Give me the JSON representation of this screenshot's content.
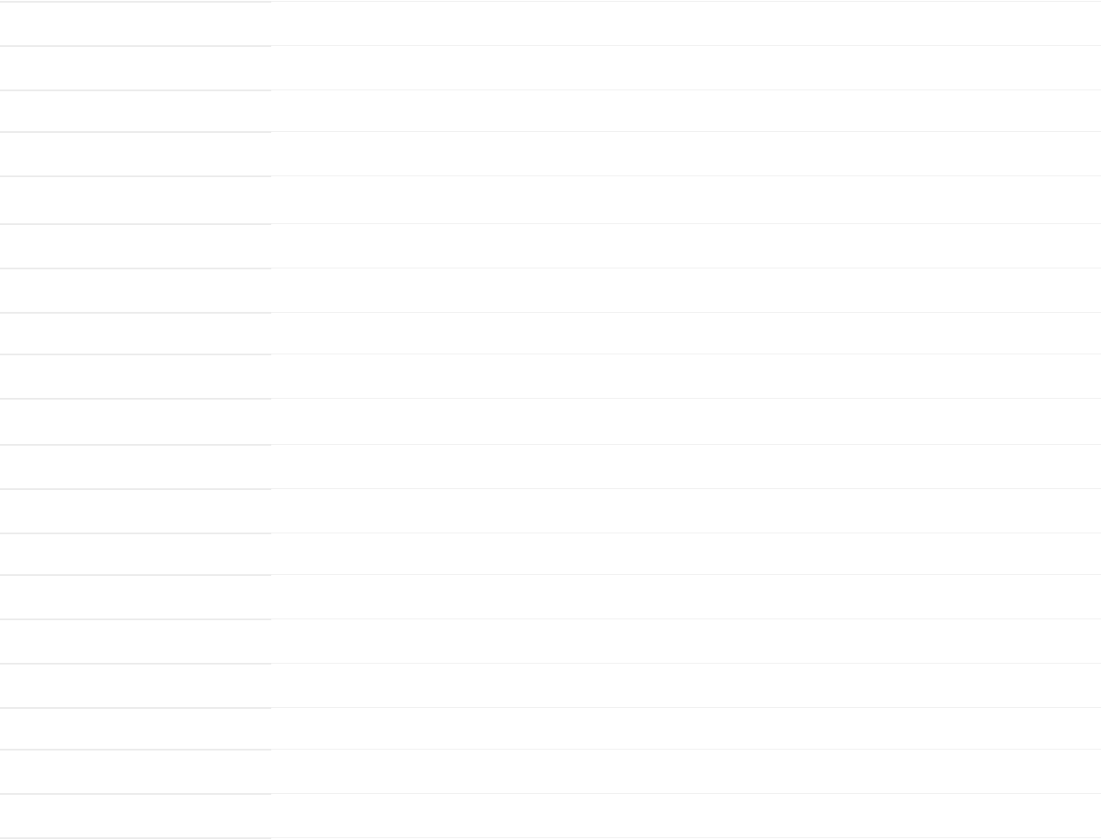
{
  "table": {
    "state": "empty",
    "rows": []
  },
  "colors": {
    "background": "#ffffff",
    "left_divider": "#ececec",
    "right_divider": "#f1f1f1"
  }
}
